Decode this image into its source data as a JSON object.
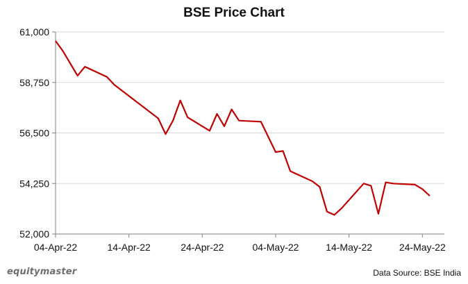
{
  "brand": "equitymaster",
  "source_note": "Data Source: BSE India",
  "colors": {
    "line": "#c00000",
    "grid": "#d9d9d9",
    "axis": "#7f7f7f"
  },
  "chart_data": {
    "type": "line",
    "title": "BSE Price Chart",
    "xlabel": "",
    "ylabel": "",
    "grid": true,
    "legend": "none",
    "ylim": [
      52000,
      61000
    ],
    "y_ticks": [
      52000,
      54250,
      56500,
      58750,
      61000
    ],
    "y_tick_labels": [
      "52,000",
      "54,250",
      "56,500",
      "58,750",
      "61,000"
    ],
    "x_range": [
      "2022-04-04",
      "2022-05-27"
    ],
    "x_ticks": [
      "2022-04-04",
      "2022-04-14",
      "2022-04-24",
      "2022-05-04",
      "2022-05-14",
      "2022-05-24"
    ],
    "x_tick_labels": [
      "04-Apr-22",
      "14-Apr-22",
      "24-Apr-22",
      "04-May-22",
      "14-May-22",
      "24-May-22"
    ],
    "series": [
      {
        "x": [
          "2022-04-04",
          "2022-04-05",
          "2022-04-07",
          "2022-04-08",
          "2022-04-11",
          "2022-04-12",
          "2022-04-18",
          "2022-04-19",
          "2022-04-20",
          "2022-04-21",
          "2022-04-22",
          "2022-04-25",
          "2022-04-26",
          "2022-04-27",
          "2022-04-28",
          "2022-04-29",
          "2022-05-02",
          "2022-05-04",
          "2022-05-05",
          "2022-05-06",
          "2022-05-09",
          "2022-05-10",
          "2022-05-11",
          "2022-05-12",
          "2022-05-13",
          "2022-05-16",
          "2022-05-17",
          "2022-05-18",
          "2022-05-19",
          "2022-05-20",
          "2022-05-23",
          "2022-05-24",
          "2022-05-25"
        ],
        "values": [
          60600,
          60150,
          59050,
          59450,
          59000,
          58650,
          57150,
          56450,
          57050,
          57950,
          57200,
          56600,
          57350,
          56800,
          57550,
          57050,
          57000,
          55650,
          55700,
          54800,
          54350,
          54100,
          53000,
          52850,
          53150,
          54250,
          54150,
          52900,
          54300,
          54250,
          54200,
          54000,
          53700
        ]
      }
    ]
  }
}
